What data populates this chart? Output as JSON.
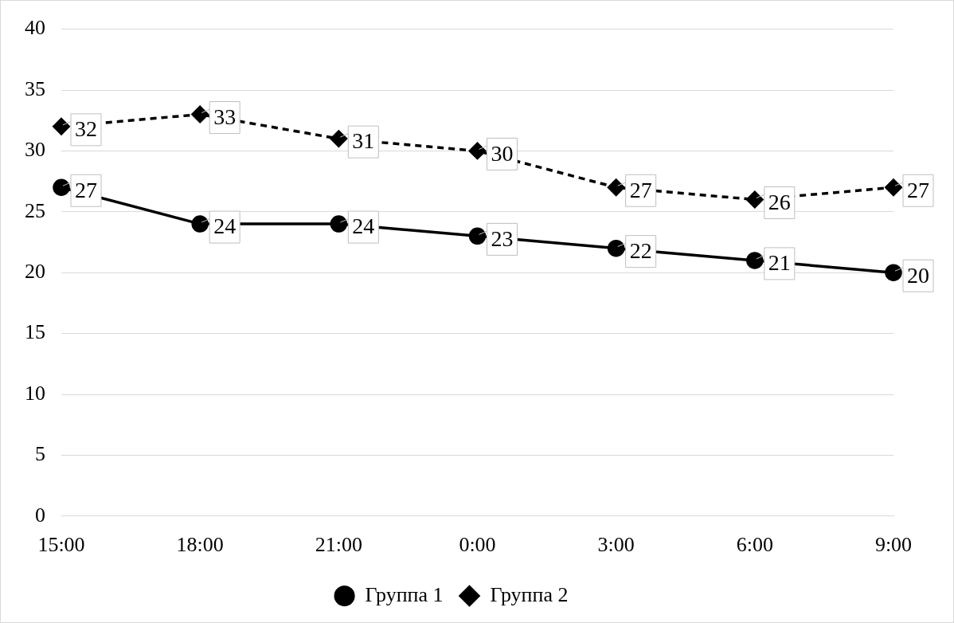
{
  "chart_data": {
    "type": "line",
    "categories": [
      "15:00",
      "18:00",
      "21:00",
      "0:00",
      "3:00",
      "6:00",
      "9:00"
    ],
    "series": [
      {
        "name": "Группа 1",
        "color": "#000000",
        "marker": "circle",
        "line_style": "solid",
        "values": [
          27,
          24,
          24,
          23,
          22,
          21,
          20
        ]
      },
      {
        "name": "Группа 2",
        "color": "#000000",
        "marker": "diamond",
        "line_style": "dashed",
        "values": [
          32,
          33,
          31,
          30,
          27,
          26,
          27
        ]
      }
    ],
    "ylim": [
      0,
      40
    ],
    "yticks": [
      0,
      5,
      10,
      15,
      20,
      25,
      30,
      35,
      40
    ],
    "grid": "y",
    "legend": "bottom",
    "data_labels": true
  }
}
